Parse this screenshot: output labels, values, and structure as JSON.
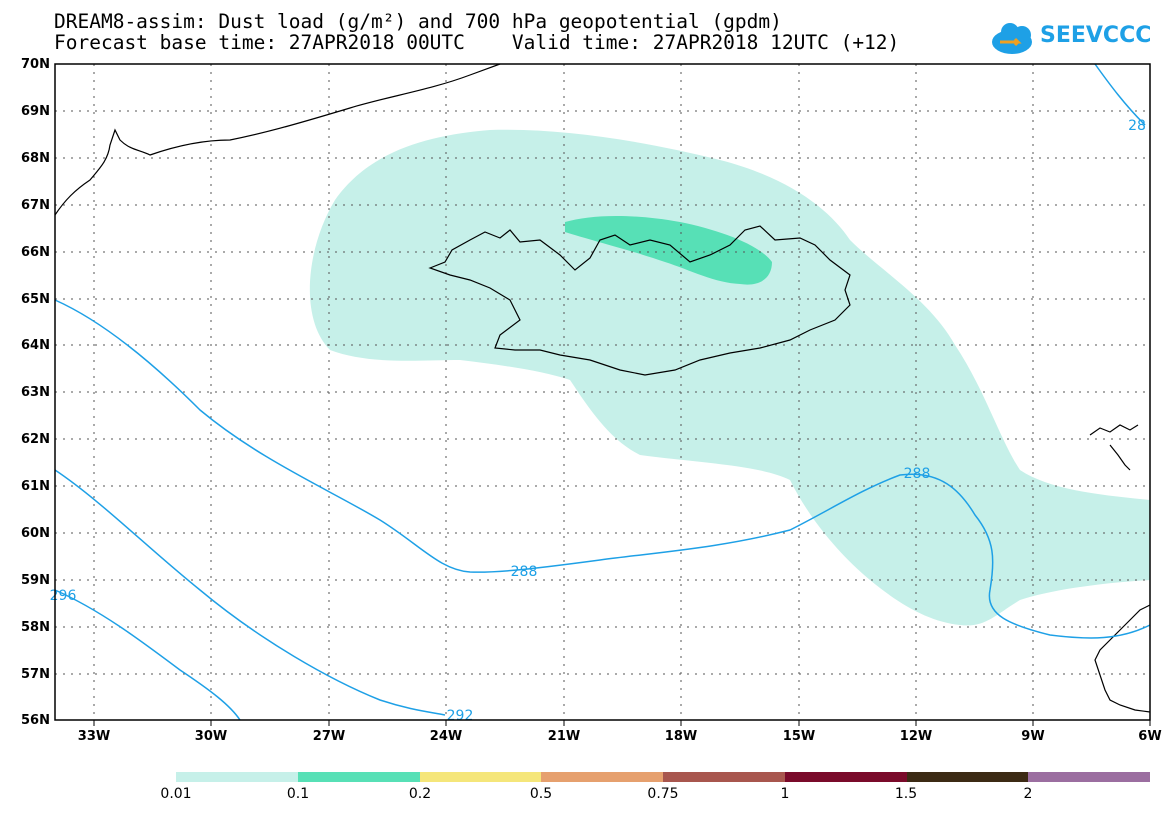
{
  "header": {
    "title_line1": "DREAM8-assim: Dust load (g/m²) and 700 hPa geopotential (gpdm)",
    "title_line2": "Forecast base time: 27APR2018 00UTC    Valid time: 27APR2018 12UTC (+12)"
  },
  "logo": {
    "text": "SEEVCCC",
    "colors": {
      "cloud": "#1ea0e6",
      "arrow": "#f0a020"
    }
  },
  "map": {
    "lat_labels": [
      "70N",
      "69N",
      "68N",
      "67N",
      "66N",
      "65N",
      "64N",
      "63N",
      "62N",
      "61N",
      "60N",
      "59N",
      "58N",
      "57N",
      "56N"
    ],
    "lon_labels": [
      "33W",
      "30W",
      "27W",
      "24W",
      "21W",
      "18W",
      "15W",
      "12W",
      "9W",
      "6W"
    ],
    "contour_labels": [
      "288",
      "288",
      "296",
      "292",
      "28"
    ],
    "colors": {
      "dust_low": "#c6f0e9",
      "dust_mid": "#57e0b6",
      "contour": "#1ea0e6",
      "coast": "#000000",
      "grid": "#555555"
    }
  },
  "colorbar": {
    "labels": [
      "0.01",
      "0.1",
      "0.2",
      "0.5",
      "0.75",
      "1",
      "1.5",
      "2"
    ],
    "colors": [
      "#c6f0e9",
      "#57e0b6",
      "#f5e67a",
      "#e6a06e",
      "#a8564e",
      "#7a0a2a",
      "#3c2a14",
      "#9b6ea0"
    ]
  }
}
